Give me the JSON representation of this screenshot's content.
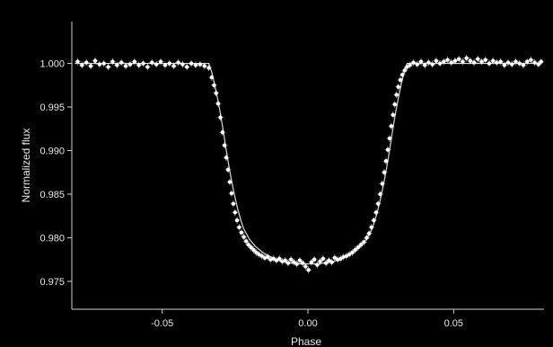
{
  "chart_data": {
    "type": "scatter",
    "title": "",
    "xlabel": "Phase",
    "ylabel": "Normalized flux",
    "xlim": [
      -0.081,
      0.081
    ],
    "ylim": [
      0.9718,
      1.0048
    ],
    "x_ticks": [
      -0.05,
      0.0,
      0.05
    ],
    "x_tick_labels": [
      "-0.05",
      "0.00",
      "0.05"
    ],
    "y_ticks": [
      0.975,
      0.98,
      0.985,
      0.99,
      0.995,
      1.0
    ],
    "y_tick_labels": [
      "0.975",
      "0.980",
      "0.985",
      "0.990",
      "0.995",
      "1.000"
    ],
    "grid": false,
    "legend": "none",
    "colors": {
      "background": "#000000",
      "points": "#ffffff",
      "errorbars": "#9a9a9a",
      "model": "#ffffff",
      "axes": "#cfcfcf"
    },
    "series": [
      {
        "kind": "points",
        "yerr": 0.0004,
        "x": [
          -0.079,
          -0.0775,
          -0.076,
          -0.0745,
          -0.073,
          -0.0715,
          -0.07,
          -0.0685,
          -0.067,
          -0.0655,
          -0.064,
          -0.0625,
          -0.061,
          -0.0595,
          -0.058,
          -0.0565,
          -0.055,
          -0.0535,
          -0.052,
          -0.0505,
          -0.049,
          -0.0475,
          -0.046,
          -0.0445,
          -0.043,
          -0.0415,
          -0.04,
          -0.0385,
          -0.037,
          -0.0355,
          -0.034,
          -0.033,
          -0.0322,
          -0.0315,
          -0.0308,
          -0.03,
          -0.0293,
          -0.0286,
          -0.028,
          -0.0274,
          -0.0268,
          -0.0262,
          -0.0256,
          -0.025,
          -0.0243,
          -0.0236,
          -0.0228,
          -0.022,
          -0.0212,
          -0.0204,
          -0.0195,
          -0.0186,
          -0.0177,
          -0.0168,
          -0.0158,
          -0.0148,
          -0.0138,
          -0.0128,
          -0.0118,
          -0.0108,
          -0.0098,
          -0.0088,
          -0.0078,
          -0.0068,
          -0.0058,
          -0.0048,
          -0.0038,
          -0.0028,
          -0.0018,
          -0.0008,
          0.0002,
          0.0012,
          0.0022,
          0.0032,
          0.0042,
          0.0052,
          0.0062,
          0.0072,
          0.0082,
          0.0092,
          0.0102,
          0.0112,
          0.0122,
          0.0132,
          0.0142,
          0.0152,
          0.0162,
          0.0172,
          0.0182,
          0.0192,
          0.0202,
          0.021,
          0.0218,
          0.0226,
          0.0234,
          0.0241,
          0.0248,
          0.0255,
          0.0262,
          0.0268,
          0.0274,
          0.028,
          0.0286,
          0.0292,
          0.0298,
          0.0304,
          0.031,
          0.0317,
          0.0324,
          0.0332,
          0.034,
          0.035,
          0.0362,
          0.0375,
          0.0388,
          0.0401,
          0.0414,
          0.0427,
          0.044,
          0.0453,
          0.0466,
          0.0479,
          0.0492,
          0.0505,
          0.0518,
          0.0531,
          0.0544,
          0.0557,
          0.057,
          0.0583,
          0.0596,
          0.0609,
          0.0622,
          0.0635,
          0.0648,
          0.0661,
          0.0674,
          0.0687,
          0.07,
          0.0713,
          0.0726,
          0.0739,
          0.0752,
          0.0765,
          0.0778,
          0.0791,
          0.08
        ],
        "y": [
          1.0002,
          0.9998,
          1.0001,
          0.9997,
          1.0003,
          0.9999,
          1.0,
          0.9996,
          1.0002,
          0.9998,
          1.0001,
          0.9997,
          0.9999,
          1.0002,
          0.9998,
          1.0,
          0.9996,
          1.0001,
          0.9999,
          1.0002,
          0.9998,
          1.0,
          0.9997,
          1.0001,
          0.9999,
          0.9996,
          1.0,
          0.9998,
          0.9999,
          0.9997,
          0.9995,
          0.9984,
          0.9975,
          0.9966,
          0.9954,
          0.9938,
          0.9921,
          0.9906,
          0.9892,
          0.9878,
          0.9864,
          0.9851,
          0.9839,
          0.9829,
          0.982,
          0.9812,
          0.9806,
          0.9801,
          0.9796,
          0.9792,
          0.9789,
          0.9786,
          0.9783,
          0.9781,
          0.9779,
          0.9777,
          0.9778,
          0.9775,
          0.9776,
          0.9774,
          0.9776,
          0.9773,
          0.9774,
          0.9771,
          0.9775,
          0.9772,
          0.977,
          0.9774,
          0.9771,
          0.9767,
          0.9763,
          0.9772,
          0.9775,
          0.9769,
          0.9773,
          0.9776,
          0.9771,
          0.9774,
          0.9772,
          0.9777,
          0.9775,
          0.9776,
          0.9778,
          0.9779,
          0.9781,
          0.9783,
          0.9786,
          0.9789,
          0.9792,
          0.9795,
          0.98,
          0.9805,
          0.9812,
          0.982,
          0.9829,
          0.9839,
          0.985,
          0.9862,
          0.9875,
          0.9888,
          0.9901,
          0.9914,
          0.9928,
          0.9941,
          0.9953,
          0.9964,
          0.9973,
          0.9981,
          0.9987,
          0.9992,
          0.9996,
          0.9998,
          1.0001,
          0.9999,
          1.0002,
          0.9998,
          1.0001,
          0.9999,
          1.0003,
          1.0,
          1.0002,
          1.0004,
          1.0001,
          1.0003,
          1.0005,
          1.0002,
          1.0006,
          1.0003,
          1.0001,
          1.0005,
          1.0002,
          1.0004,
          1.0,
          1.0003,
          1.0001,
          1.0002,
          0.9998,
          1.0001,
          0.9999,
          1.0002,
          1.0,
          0.9998,
          1.0002,
          1.0004,
          1.0001,
          0.9999,
          1.0002
        ]
      },
      {
        "kind": "model-line",
        "x": [
          -0.08,
          -0.034,
          -0.033,
          -0.032,
          -0.031,
          -0.03,
          -0.029,
          -0.028,
          -0.027,
          -0.026,
          -0.025,
          -0.024,
          -0.023,
          -0.022,
          -0.02,
          -0.018,
          -0.015,
          -0.012,
          -0.009,
          -0.006,
          -0.003,
          0.0,
          0.003,
          0.006,
          0.009,
          0.012,
          0.015,
          0.018,
          0.02,
          0.022,
          0.023,
          0.024,
          0.025,
          0.026,
          0.027,
          0.028,
          0.029,
          0.03,
          0.031,
          0.032,
          0.033,
          0.034,
          0.08
        ],
        "y": [
          1.0,
          1.0,
          0.999,
          0.9976,
          0.996,
          0.9942,
          0.9922,
          0.99,
          0.988,
          0.9862,
          0.9846,
          0.9832,
          0.982,
          0.981,
          0.9798,
          0.979,
          0.9782,
          0.9777,
          0.9773,
          0.9771,
          0.977,
          0.977,
          0.977,
          0.9771,
          0.9773,
          0.9777,
          0.9782,
          0.979,
          0.9798,
          0.981,
          0.982,
          0.9832,
          0.9846,
          0.9862,
          0.988,
          0.99,
          0.9922,
          0.9942,
          0.996,
          0.9976,
          0.999,
          1.0,
          1.0
        ]
      }
    ]
  }
}
